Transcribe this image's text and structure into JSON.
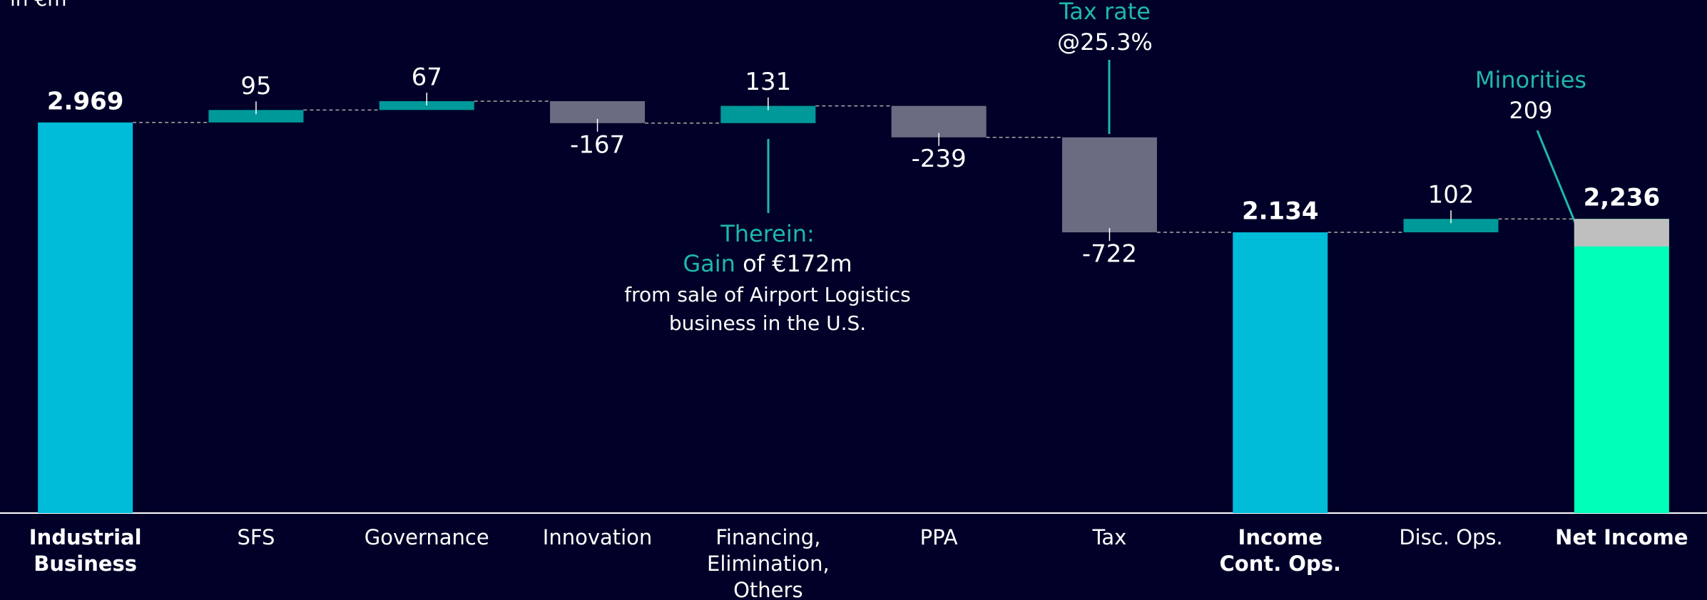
{
  "chart_data": {
    "type": "waterfall",
    "subtitle": "in €m",
    "categories": [
      "Industrial\nBusiness",
      "SFS",
      "Governance",
      "Innovation",
      "Financing,\nElimination,\nOthers",
      "PPA",
      "Tax",
      "Income\nCont. Ops.",
      "Disc. Ops.",
      "Net Income"
    ],
    "values": [
      2969,
      95,
      67,
      -167,
      131,
      -239,
      -722,
      2134,
      102,
      2236
    ],
    "value_labels": [
      "2.969",
      "95",
      "67",
      "-167",
      "131",
      "-239",
      "-722",
      "2.134",
      "102",
      "2,236"
    ],
    "measure": [
      "total",
      "relative",
      "relative",
      "relative",
      "relative",
      "relative",
      "relative",
      "total",
      "relative",
      "total"
    ],
    "colors": {
      "total": "#00bcd9",
      "positive": "#009999",
      "negative": "#6b6b82",
      "final": "#00ffb9",
      "minorities": "#bfbfbf"
    },
    "minorities": {
      "label": "Minorities",
      "value": 209
    },
    "ylim": [
      0,
      3900
    ],
    "annotations": {
      "tax": [
        "Tax rate",
        "@25.3%"
      ],
      "therein": {
        "head": "Therein:",
        "gain": "Gain",
        "amount": "of €172m",
        "line1": "from sale of Airport Logistics",
        "line2": "business in the U.S."
      }
    }
  }
}
